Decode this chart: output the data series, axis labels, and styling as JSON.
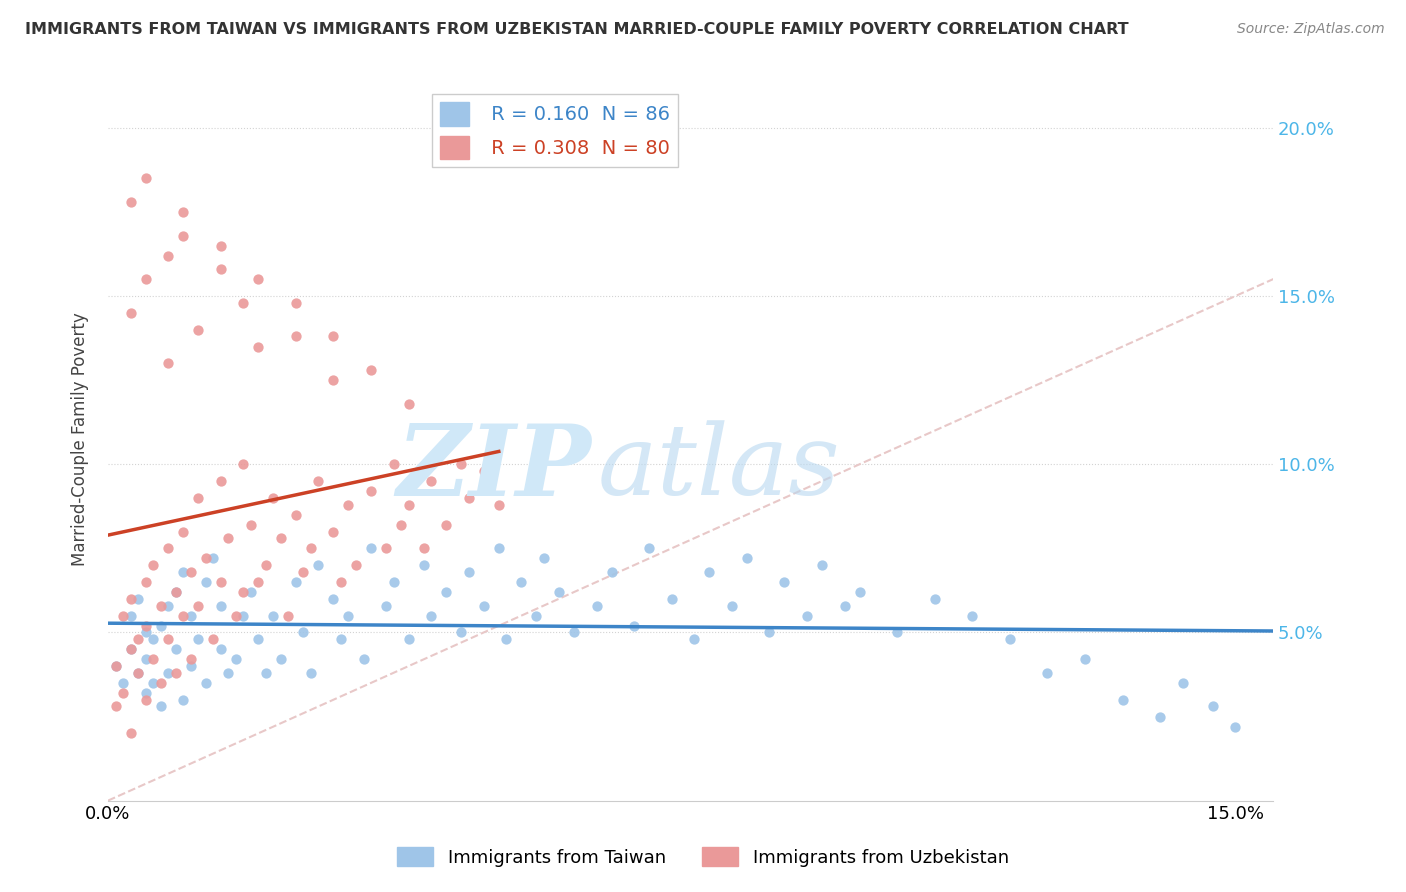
{
  "title": "IMMIGRANTS FROM TAIWAN VS IMMIGRANTS FROM UZBEKISTAN MARRIED-COUPLE FAMILY POVERTY CORRELATION CHART",
  "source": "Source: ZipAtlas.com",
  "ylabel": "Married-Couple Family Poverty",
  "xlim": [
    0.0,
    0.155
  ],
  "ylim": [
    0.0,
    0.215
  ],
  "taiwan_color": "#9fc5e8",
  "uzbekistan_color": "#ea9999",
  "taiwan_line_color": "#3d85c8",
  "uzbekistan_line_color": "#cc4125",
  "taiwan_R": 0.16,
  "taiwan_N": 86,
  "uzbekistan_R": 0.308,
  "uzbekistan_N": 80,
  "legend_label_taiwan": "Immigrants from Taiwan",
  "legend_label_uzbekistan": "Immigrants from Uzbekistan",
  "taiwan_scatter_x": [
    0.001,
    0.002,
    0.003,
    0.003,
    0.004,
    0.004,
    0.005,
    0.005,
    0.005,
    0.006,
    0.006,
    0.007,
    0.007,
    0.008,
    0.008,
    0.009,
    0.009,
    0.01,
    0.01,
    0.011,
    0.011,
    0.012,
    0.013,
    0.013,
    0.014,
    0.015,
    0.015,
    0.016,
    0.017,
    0.018,
    0.019,
    0.02,
    0.021,
    0.022,
    0.023,
    0.025,
    0.026,
    0.027,
    0.028,
    0.03,
    0.031,
    0.032,
    0.034,
    0.035,
    0.037,
    0.038,
    0.04,
    0.042,
    0.043,
    0.045,
    0.047,
    0.048,
    0.05,
    0.052,
    0.053,
    0.055,
    0.057,
    0.058,
    0.06,
    0.062,
    0.065,
    0.067,
    0.07,
    0.072,
    0.075,
    0.078,
    0.08,
    0.083,
    0.085,
    0.088,
    0.09,
    0.093,
    0.095,
    0.098,
    0.1,
    0.105,
    0.11,
    0.115,
    0.12,
    0.125,
    0.13,
    0.135,
    0.14,
    0.143,
    0.147,
    0.15
  ],
  "taiwan_scatter_y": [
    0.04,
    0.035,
    0.055,
    0.045,
    0.06,
    0.038,
    0.05,
    0.042,
    0.032,
    0.048,
    0.035,
    0.052,
    0.028,
    0.058,
    0.038,
    0.062,
    0.045,
    0.068,
    0.03,
    0.055,
    0.04,
    0.048,
    0.065,
    0.035,
    0.072,
    0.058,
    0.045,
    0.038,
    0.042,
    0.055,
    0.062,
    0.048,
    0.038,
    0.055,
    0.042,
    0.065,
    0.05,
    0.038,
    0.07,
    0.06,
    0.048,
    0.055,
    0.042,
    0.075,
    0.058,
    0.065,
    0.048,
    0.07,
    0.055,
    0.062,
    0.05,
    0.068,
    0.058,
    0.075,
    0.048,
    0.065,
    0.055,
    0.072,
    0.062,
    0.05,
    0.058,
    0.068,
    0.052,
    0.075,
    0.06,
    0.048,
    0.068,
    0.058,
    0.072,
    0.05,
    0.065,
    0.055,
    0.07,
    0.058,
    0.062,
    0.05,
    0.06,
    0.055,
    0.048,
    0.038,
    0.042,
    0.03,
    0.025,
    0.035,
    0.028,
    0.022
  ],
  "uzbekistan_scatter_x": [
    0.001,
    0.001,
    0.002,
    0.002,
    0.003,
    0.003,
    0.003,
    0.004,
    0.004,
    0.005,
    0.005,
    0.005,
    0.006,
    0.006,
    0.007,
    0.007,
    0.008,
    0.008,
    0.009,
    0.009,
    0.01,
    0.01,
    0.011,
    0.011,
    0.012,
    0.012,
    0.013,
    0.014,
    0.015,
    0.015,
    0.016,
    0.017,
    0.018,
    0.018,
    0.019,
    0.02,
    0.021,
    0.022,
    0.023,
    0.024,
    0.025,
    0.026,
    0.027,
    0.028,
    0.03,
    0.031,
    0.032,
    0.033,
    0.035,
    0.037,
    0.038,
    0.039,
    0.04,
    0.042,
    0.043,
    0.045,
    0.047,
    0.048,
    0.05,
    0.052,
    0.003,
    0.005,
    0.008,
    0.01,
    0.012,
    0.015,
    0.018,
    0.02,
    0.025,
    0.03,
    0.003,
    0.005,
    0.008,
    0.01,
    0.015,
    0.02,
    0.025,
    0.03,
    0.035,
    0.04
  ],
  "uzbekistan_scatter_y": [
    0.04,
    0.028,
    0.055,
    0.032,
    0.045,
    0.06,
    0.02,
    0.038,
    0.048,
    0.065,
    0.03,
    0.052,
    0.042,
    0.07,
    0.058,
    0.035,
    0.048,
    0.075,
    0.062,
    0.038,
    0.055,
    0.08,
    0.068,
    0.042,
    0.058,
    0.09,
    0.072,
    0.048,
    0.065,
    0.095,
    0.078,
    0.055,
    0.062,
    0.1,
    0.082,
    0.065,
    0.07,
    0.09,
    0.078,
    0.055,
    0.085,
    0.068,
    0.075,
    0.095,
    0.08,
    0.065,
    0.088,
    0.07,
    0.092,
    0.075,
    0.1,
    0.082,
    0.088,
    0.075,
    0.095,
    0.082,
    0.1,
    0.09,
    0.098,
    0.088,
    0.145,
    0.155,
    0.13,
    0.168,
    0.14,
    0.158,
    0.148,
    0.135,
    0.138,
    0.125,
    0.178,
    0.185,
    0.162,
    0.175,
    0.165,
    0.155,
    0.148,
    0.138,
    0.128,
    0.118
  ]
}
